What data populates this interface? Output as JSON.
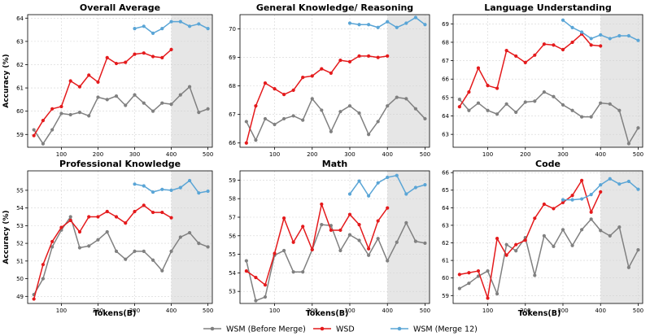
{
  "figure": {
    "xlabel": "Tokens(B)",
    "legend": [
      {
        "name": "WSM (Before Merge)",
        "color": "#808080"
      },
      {
        "name": "WSD",
        "color": "#e41a1c"
      },
      {
        "name": "WSM (Merge 12)",
        "color": "#5aa5d6"
      }
    ],
    "legend_placement": "bottom-center"
  },
  "chart_data": [
    {
      "type": "line",
      "title": "Overall Average",
      "ylabel": "Accuracy (%)",
      "xlim": [
        8,
        512
      ],
      "ylim": [
        58.45,
        64.15
      ],
      "xticks": [
        100,
        200,
        300,
        400,
        500
      ],
      "yticks": [
        59,
        60,
        61,
        62,
        63,
        64
      ],
      "shade": [
        400,
        512
      ],
      "grid": true,
      "series": [
        {
          "name": "WSM (Before Merge)",
          "color": "#808080",
          "x": [
            25,
            50,
            75,
            100,
            125,
            150,
            175,
            200,
            225,
            250,
            275,
            300,
            325,
            350,
            375,
            400,
            425,
            450,
            475,
            500
          ],
          "y": [
            59.2,
            58.6,
            59.2,
            59.9,
            59.85,
            59.95,
            59.8,
            60.6,
            60.5,
            60.65,
            60.25,
            60.7,
            60.35,
            60.0,
            60.35,
            60.3,
            60.7,
            61.05,
            59.95,
            60.1
          ]
        },
        {
          "name": "WSD",
          "color": "#e41a1c",
          "x": [
            25,
            50,
            75,
            100,
            125,
            150,
            175,
            200,
            225,
            250,
            275,
            300,
            325,
            350,
            375,
            400
          ],
          "y": [
            58.95,
            59.6,
            60.1,
            60.2,
            61.3,
            61.05,
            61.55,
            61.25,
            62.3,
            62.05,
            62.1,
            62.45,
            62.5,
            62.35,
            62.3,
            62.65
          ]
        },
        {
          "name": "WSM (Merge 12)",
          "color": "#5aa5d6",
          "x": [
            300,
            325,
            350,
            375,
            400,
            425,
            450,
            475,
            500
          ],
          "y": [
            63.55,
            63.65,
            63.35,
            63.55,
            63.85,
            63.85,
            63.65,
            63.75,
            63.55
          ]
        }
      ]
    },
    {
      "type": "line",
      "title": "General Knowledge/ Reasoning",
      "ylabel": "",
      "xlim": [
        8,
        512
      ],
      "ylim": [
        65.85,
        70.5
      ],
      "xticks": [
        100,
        200,
        300,
        400,
        500
      ],
      "yticks": [
        66,
        67,
        68,
        69,
        70
      ],
      "shade": [
        400,
        512
      ],
      "grid": true,
      "series": [
        {
          "name": "WSM (Before Merge)",
          "color": "#808080",
          "x": [
            25,
            50,
            75,
            100,
            125,
            150,
            175,
            200,
            225,
            250,
            275,
            300,
            325,
            350,
            375,
            400,
            425,
            450,
            475,
            500
          ],
          "y": [
            66.75,
            66.1,
            66.85,
            66.65,
            66.85,
            66.95,
            66.8,
            67.55,
            67.15,
            66.4,
            67.1,
            67.3,
            67.05,
            66.3,
            66.75,
            67.3,
            67.6,
            67.55,
            67.2,
            66.85
          ]
        },
        {
          "name": "WSD",
          "color": "#e41a1c",
          "x": [
            25,
            50,
            75,
            100,
            125,
            150,
            175,
            200,
            225,
            250,
            275,
            300,
            325,
            350,
            375,
            400
          ],
          "y": [
            66.0,
            67.3,
            68.1,
            67.9,
            67.7,
            67.85,
            68.3,
            68.35,
            68.6,
            68.45,
            68.9,
            68.85,
            69.05,
            69.05,
            69.0,
            69.05
          ]
        },
        {
          "name": "WSM (Merge 12)",
          "color": "#5aa5d6",
          "x": [
            300,
            325,
            350,
            375,
            400,
            425,
            450,
            475,
            500
          ],
          "y": [
            70.2,
            70.15,
            70.15,
            70.05,
            70.25,
            70.05,
            70.2,
            70.4,
            70.15
          ]
        }
      ]
    },
    {
      "type": "line",
      "title": "Language Understanding",
      "ylabel": "",
      "xlim": [
        8,
        512
      ],
      "ylim": [
        62.3,
        69.5
      ],
      "xticks": [
        100,
        200,
        300,
        400,
        500
      ],
      "yticks": [
        63,
        64,
        65,
        66,
        67,
        68,
        69
      ],
      "shade": [
        400,
        512
      ],
      "grid": true,
      "series": [
        {
          "name": "WSM (Before Merge)",
          "color": "#808080",
          "x": [
            25,
            50,
            75,
            100,
            125,
            150,
            175,
            200,
            225,
            250,
            275,
            300,
            325,
            350,
            375,
            400,
            425,
            450,
            475,
            500
          ],
          "y": [
            64.9,
            64.3,
            64.7,
            64.3,
            64.1,
            64.65,
            64.2,
            64.75,
            64.8,
            65.3,
            65.05,
            64.6,
            64.3,
            63.95,
            63.95,
            64.7,
            64.65,
            64.3,
            62.5,
            63.35
          ]
        },
        {
          "name": "WSD",
          "color": "#e41a1c",
          "x": [
            25,
            50,
            75,
            100,
            125,
            150,
            175,
            200,
            225,
            250,
            275,
            300,
            325,
            350,
            375,
            400
          ],
          "y": [
            64.5,
            65.3,
            66.6,
            65.65,
            65.5,
            67.55,
            67.25,
            66.9,
            67.3,
            67.9,
            67.85,
            67.6,
            68.0,
            68.45,
            67.85,
            67.8
          ]
        },
        {
          "name": "WSM (Merge 12)",
          "color": "#5aa5d6",
          "x": [
            300,
            325,
            350,
            375,
            400,
            425,
            450,
            475,
            500
          ],
          "y": [
            69.2,
            68.8,
            68.55,
            68.2,
            68.4,
            68.2,
            68.35,
            68.35,
            68.1
          ]
        }
      ]
    },
    {
      "type": "line",
      "title": "Professional Knowledge",
      "ylabel": "Accuracy (%)",
      "xlim": [
        8,
        512
      ],
      "ylim": [
        48.6,
        56.1
      ],
      "xticks": [
        100,
        200,
        300,
        400,
        500
      ],
      "yticks": [
        49,
        50,
        51,
        52,
        53,
        54,
        55
      ],
      "shade": [
        400,
        512
      ],
      "grid": true,
      "series": [
        {
          "name": "WSM (Before Merge)",
          "color": "#808080",
          "x": [
            25,
            50,
            75,
            100,
            125,
            150,
            175,
            200,
            225,
            250,
            275,
            300,
            325,
            350,
            375,
            400,
            425,
            450,
            475,
            500
          ],
          "y": [
            49.1,
            50.0,
            51.8,
            52.75,
            53.5,
            51.75,
            51.85,
            52.2,
            52.65,
            51.55,
            51.1,
            51.55,
            51.55,
            51.05,
            50.45,
            51.55,
            52.35,
            52.6,
            52.0,
            51.8
          ]
        },
        {
          "name": "WSD",
          "color": "#e41a1c",
          "x": [
            25,
            50,
            75,
            100,
            125,
            150,
            175,
            200,
            225,
            250,
            275,
            300,
            325,
            350,
            375,
            400
          ],
          "y": [
            48.85,
            50.8,
            52.1,
            52.9,
            53.3,
            52.65,
            53.5,
            53.5,
            53.8,
            53.5,
            53.15,
            53.8,
            54.15,
            53.75,
            53.75,
            53.45
          ]
        },
        {
          "name": "WSM (Merge 12)",
          "color": "#5aa5d6",
          "x": [
            300,
            325,
            350,
            375,
            400,
            425,
            450,
            475,
            500
          ],
          "y": [
            55.35,
            55.25,
            54.9,
            55.05,
            55.0,
            55.15,
            55.55,
            54.85,
            54.95
          ]
        }
      ]
    },
    {
      "type": "line",
      "title": "Math",
      "ylabel": "",
      "xlim": [
        8,
        512
      ],
      "ylim": [
        52.35,
        59.5
      ],
      "xticks": [
        100,
        200,
        300,
        400,
        500
      ],
      "yticks": [
        53,
        54,
        55,
        56,
        57,
        58,
        59
      ],
      "shade": [
        400,
        512
      ],
      "grid": true,
      "series": [
        {
          "name": "WSM (Before Merge)",
          "color": "#808080",
          "x": [
            25,
            50,
            75,
            100,
            125,
            150,
            175,
            200,
            225,
            250,
            275,
            300,
            325,
            350,
            375,
            400,
            425,
            450,
            475,
            500
          ],
          "y": [
            54.65,
            52.5,
            52.7,
            54.95,
            55.2,
            54.05,
            54.05,
            55.25,
            56.6,
            56.55,
            55.2,
            56.05,
            55.75,
            54.95,
            55.85,
            54.65,
            55.65,
            56.7,
            55.7,
            55.6
          ]
        },
        {
          "name": "WSD",
          "color": "#e41a1c",
          "x": [
            25,
            50,
            75,
            100,
            125,
            150,
            175,
            200,
            225,
            250,
            275,
            300,
            325,
            350,
            375,
            400
          ],
          "y": [
            54.1,
            53.75,
            53.35,
            55.05,
            56.95,
            55.65,
            56.5,
            55.25,
            57.7,
            56.3,
            56.3,
            57.15,
            56.6,
            55.3,
            56.8,
            57.5
          ]
        },
        {
          "name": "WSM (Merge 12)",
          "color": "#5aa5d6",
          "x": [
            300,
            325,
            350,
            375,
            400,
            425,
            450,
            475,
            500
          ],
          "y": [
            58.25,
            58.95,
            58.15,
            58.85,
            59.15,
            59.25,
            58.25,
            58.6,
            58.75
          ]
        }
      ]
    },
    {
      "type": "line",
      "title": "Code",
      "ylabel": "",
      "xlim": [
        8,
        512
      ],
      "ylim": [
        58.55,
        66.1
      ],
      "xticks": [
        100,
        200,
        300,
        400,
        500
      ],
      "yticks": [
        59,
        60,
        61,
        62,
        63,
        64,
        65,
        66
      ],
      "shade": [
        400,
        512
      ],
      "grid": true,
      "series": [
        {
          "name": "WSM (Before Merge)",
          "color": "#808080",
          "x": [
            25,
            50,
            75,
            100,
            125,
            150,
            175,
            200,
            225,
            250,
            275,
            300,
            325,
            350,
            375,
            400,
            425,
            450,
            475,
            500
          ],
          "y": [
            59.4,
            59.7,
            60.1,
            60.4,
            59.1,
            61.9,
            61.55,
            62.3,
            60.15,
            62.4,
            61.8,
            62.75,
            61.85,
            62.75,
            63.35,
            62.7,
            62.4,
            62.9,
            60.6,
            61.6
          ]
        },
        {
          "name": "WSD",
          "color": "#e41a1c",
          "x": [
            25,
            50,
            75,
            100,
            125,
            150,
            175,
            200,
            225,
            250,
            275,
            300,
            325,
            350,
            375,
            400
          ],
          "y": [
            60.2,
            60.3,
            60.4,
            58.85,
            62.25,
            61.3,
            61.9,
            62.15,
            63.4,
            64.2,
            63.95,
            64.3,
            64.7,
            65.55,
            63.75,
            64.9
          ]
        },
        {
          "name": "WSM (Merge 12)",
          "color": "#5aa5d6",
          "x": [
            300,
            325,
            350,
            375,
            400,
            425,
            450,
            475,
            500
          ],
          "y": [
            64.45,
            64.45,
            64.5,
            64.75,
            65.3,
            65.65,
            65.35,
            65.5,
            65.05
          ]
        }
      ]
    }
  ]
}
